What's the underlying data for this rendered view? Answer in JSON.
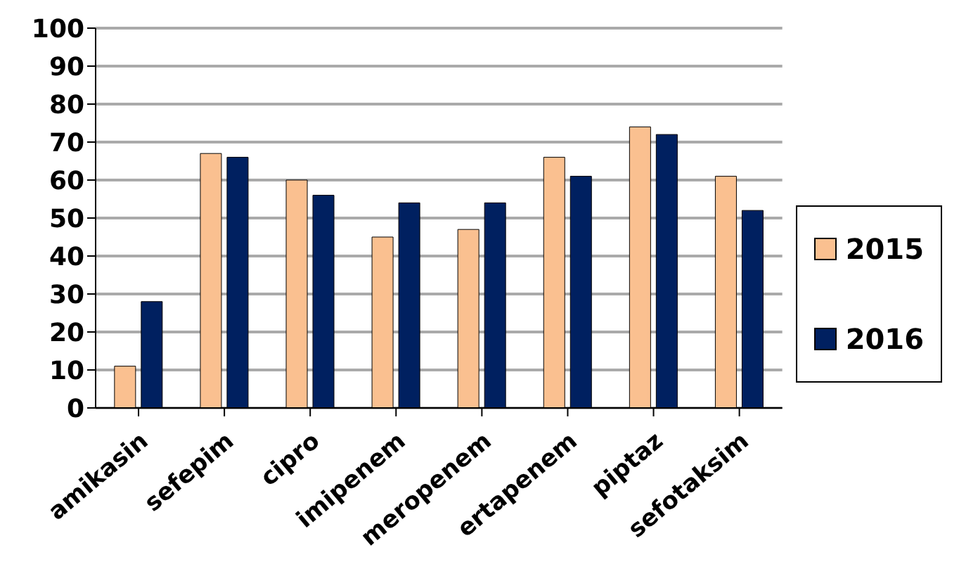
{
  "chart_data": {
    "type": "bar",
    "categories": [
      "amikasin",
      "sefepim",
      "cipro",
      "imipenem",
      "meropenem",
      "ertapenem",
      "piptaz",
      "sefotaksim"
    ],
    "series": [
      {
        "name": "2015",
        "color": "#fac090",
        "values": [
          11,
          67,
          60,
          45,
          47,
          66,
          74,
          61
        ]
      },
      {
        "name": "2016",
        "color": "#002060",
        "values": [
          28,
          66,
          56,
          54,
          54,
          61,
          72,
          52
        ]
      }
    ],
    "ylim": [
      0,
      100
    ],
    "yticks": [
      0,
      10,
      20,
      30,
      40,
      50,
      60,
      70,
      80,
      90,
      100
    ],
    "grid": "y",
    "legend": "right"
  }
}
